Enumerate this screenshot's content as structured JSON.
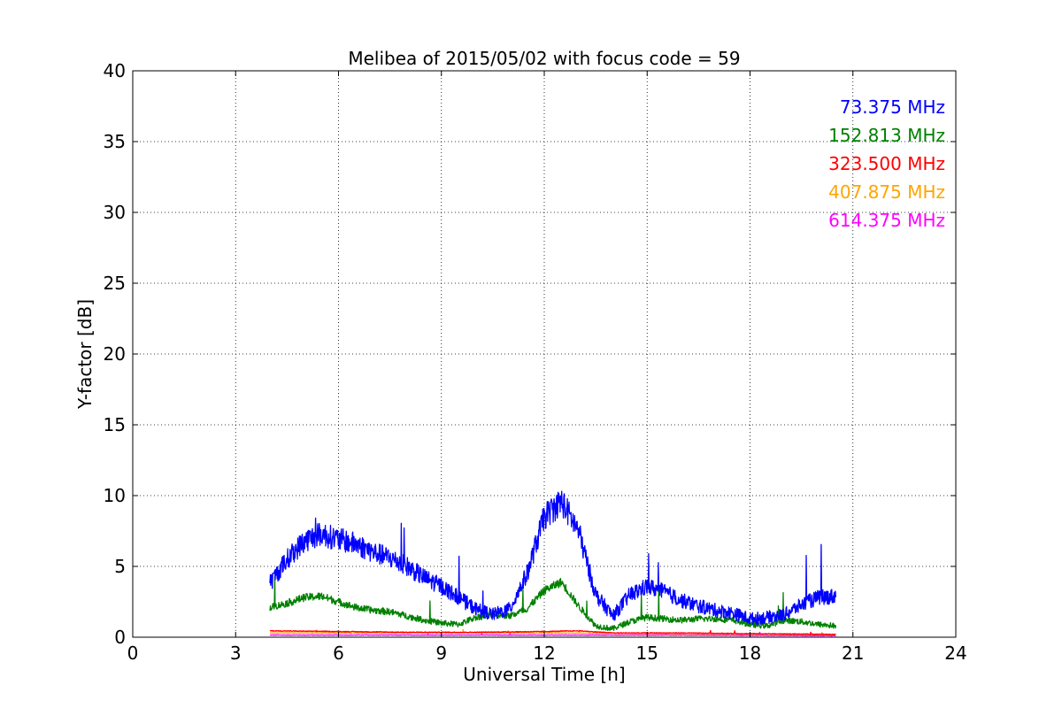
{
  "chart_data": {
    "type": "line",
    "title": "Melibea of 2015/05/02 with focus code = 59",
    "xlabel": "Universal Time [h]",
    "ylabel": "Y-factor [dB]",
    "xlim": [
      0,
      24
    ],
    "ylim": [
      0,
      40
    ],
    "xticks": [
      0,
      3,
      6,
      9,
      12,
      15,
      18,
      21,
      24
    ],
    "yticks": [
      0,
      5,
      10,
      15,
      20,
      25,
      30,
      35,
      40
    ],
    "grid": true,
    "legend_position": "top-right",
    "series": [
      {
        "name": "73.375 MHz",
        "color": "#0000ff",
        "noise": 0.7,
        "x": [
          4.0,
          4.5,
          5.0,
          5.5,
          6.0,
          6.5,
          7.0,
          7.5,
          8.0,
          8.5,
          9.0,
          9.5,
          10.0,
          10.5,
          11.0,
          11.5,
          12.0,
          12.5,
          13.0,
          13.5,
          14.0,
          14.5,
          15.0,
          15.5,
          16.0,
          16.5,
          17.0,
          17.5,
          18.0,
          18.5,
          19.0,
          19.5,
          20.0,
          20.5
        ],
        "y": [
          3.8,
          5.5,
          6.8,
          7.3,
          6.9,
          6.6,
          6.0,
          5.6,
          5.0,
          4.2,
          3.6,
          2.8,
          2.0,
          1.6,
          2.0,
          4.5,
          8.5,
          9.6,
          7.5,
          3.0,
          1.5,
          3.0,
          3.6,
          3.2,
          2.6,
          2.2,
          1.9,
          1.7,
          1.3,
          1.4,
          1.6,
          2.3,
          2.8,
          2.9
        ]
      },
      {
        "name": "152.813 MHz",
        "color": "#008000",
        "noise": 0.35,
        "x": [
          4.0,
          4.5,
          5.0,
          5.5,
          6.0,
          6.5,
          7.0,
          7.5,
          8.0,
          8.5,
          9.0,
          9.5,
          10.0,
          10.5,
          11.0,
          11.5,
          12.0,
          12.5,
          13.0,
          13.5,
          14.0,
          14.5,
          15.0,
          15.5,
          16.0,
          16.5,
          17.0,
          17.5,
          18.0,
          18.5,
          19.0,
          19.5,
          20.0,
          20.5
        ],
        "y": [
          2.1,
          2.4,
          2.8,
          2.9,
          2.5,
          2.1,
          1.9,
          1.8,
          1.5,
          1.2,
          1.0,
          0.9,
          1.4,
          1.6,
          1.5,
          2.0,
          3.3,
          3.9,
          2.2,
          0.8,
          0.6,
          1.1,
          1.4,
          1.3,
          1.2,
          1.3,
          1.3,
          1.2,
          0.9,
          0.8,
          1.2,
          1.1,
          0.9,
          0.8
        ]
      },
      {
        "name": "323.500 MHz",
        "color": "#ff0000",
        "noise": 0.05,
        "x": [
          4.0,
          6.0,
          8.0,
          10.0,
          12.0,
          13.0,
          14.0,
          16.0,
          18.0,
          20.5
        ],
        "y": [
          0.45,
          0.4,
          0.35,
          0.35,
          0.4,
          0.45,
          0.3,
          0.3,
          0.25,
          0.2
        ]
      },
      {
        "name": "407.875 MHz",
        "color": "#ffa500",
        "noise": 0.04,
        "x": [
          4.0,
          8.0,
          12.0,
          16.0,
          20.5
        ],
        "y": [
          0.3,
          0.3,
          0.3,
          0.25,
          0.2
        ]
      },
      {
        "name": "614.375 MHz",
        "color": "#ff00ff",
        "noise": 0.04,
        "x": [
          4.0,
          8.0,
          12.0,
          16.0,
          20.5
        ],
        "y": [
          0.15,
          0.15,
          0.15,
          0.15,
          0.1
        ]
      }
    ]
  }
}
